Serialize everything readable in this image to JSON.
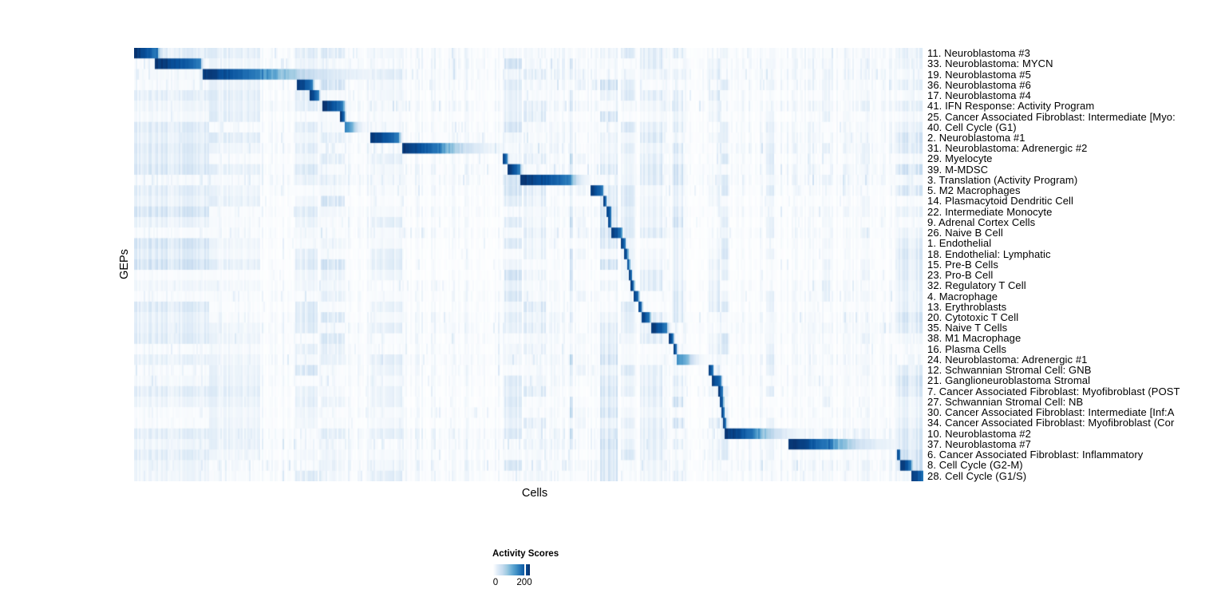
{
  "figure": {
    "y_axis_label": "GEPs",
    "x_axis_label": "Cells"
  },
  "legend": {
    "title": "Activity Scores",
    "tick_labels": [
      "0",
      "200"
    ],
    "min_value": 0,
    "max_tick_value": 200
  },
  "colors": {
    "background": "#ffffff",
    "heatmap_low": "#f7fbff",
    "heatmap_high": "#08306b"
  },
  "chart_data": {
    "type": "heatmap",
    "title": "",
    "xlabel": "Cells",
    "ylabel": "GEPs",
    "x_ticks": [],
    "grid": false,
    "legend_position": "bottom-left",
    "value_scale": {
      "min": 0,
      "tick": 200,
      "max": 220,
      "colormap": "Blues (white to dark navy)"
    },
    "colormap_stops": [
      "#ffffff",
      "#deebf7",
      "#c6dbef",
      "#9ecae1",
      "#6baed6",
      "#4292c6",
      "#2171b5",
      "#08519c",
      "#08306b"
    ],
    "n_rows": 41,
    "rows": [
      {
        "label": "11. Neuroblastoma #3",
        "start": 0.0,
        "dark": 0.029,
        "fade": 0.012,
        "peak": 215,
        "noise": 0.55
      },
      {
        "label": "33. Neuroblastoma: MYCN",
        "start": 0.026,
        "dark": 0.058,
        "fade": 0.006,
        "peak": 215,
        "noise": 0.65
      },
      {
        "label": "19. Neuroblastoma #5",
        "start": 0.087,
        "dark": 0.072,
        "fade": 0.17,
        "peak": 210,
        "noise": 0.7
      },
      {
        "label": "36. Neuroblastoma #6",
        "start": 0.206,
        "dark": 0.02,
        "fade": 0.004,
        "peak": 215,
        "noise": 0.6
      },
      {
        "label": "17. Neuroblastoma #4",
        "start": 0.222,
        "dark": 0.012,
        "fade": 0.003,
        "peak": 210,
        "noise": 0.45
      },
      {
        "label": "41. IFN Response: Activity Program",
        "start": 0.238,
        "dark": 0.027,
        "fade": 0.005,
        "peak": 215,
        "noise": 0.7
      },
      {
        "label": "25. Cancer Associated Fibroblast: Intermediate [Myo:",
        "start": 0.261,
        "dark": 0.006,
        "fade": 0.002,
        "peak": 215,
        "noise": 0.4
      },
      {
        "label": "40. Cell Cycle (G1)",
        "start": 0.267,
        "dark": 0.009,
        "fade": 0.02,
        "peak": 150,
        "noise": 0.55
      },
      {
        "label": "2. Neuroblastoma #1",
        "start": 0.298,
        "dark": 0.037,
        "fade": 0.006,
        "peak": 215,
        "noise": 0.6
      },
      {
        "label": "31. Neuroblastoma: Adrenergic #2",
        "start": 0.34,
        "dark": 0.045,
        "fade": 0.085,
        "peak": 215,
        "noise": 0.7
      },
      {
        "label": "29. Myelocyte",
        "start": 0.467,
        "dark": 0.006,
        "fade": 0.002,
        "peak": 200,
        "noise": 0.45
      },
      {
        "label": "39. M-MDSC",
        "start": 0.473,
        "dark": 0.015,
        "fade": 0.006,
        "peak": 215,
        "noise": 0.6
      },
      {
        "label": "3. Translation (Activity Program)",
        "start": 0.488,
        "dark": 0.063,
        "fade": 0.027,
        "peak": 215,
        "noise": 0.7
      },
      {
        "label": "5. M2 Macrophages",
        "start": 0.578,
        "dark": 0.015,
        "fade": 0.003,
        "peak": 215,
        "noise": 0.5
      },
      {
        "label": "14. Plasmacytoid Dendritic Cell",
        "start": 0.594,
        "dark": 0.004,
        "fade": 0.002,
        "peak": 210,
        "noise": 0.35
      },
      {
        "label": "22. Intermediate Monocyte",
        "start": 0.598,
        "dark": 0.006,
        "fade": 0.002,
        "peak": 210,
        "noise": 0.5
      },
      {
        "label": "9. Adrenal Cortex Cells",
        "start": 0.601,
        "dark": 0.003,
        "fade": 0.002,
        "peak": 195,
        "noise": 0.35
      },
      {
        "label": "26. Naive B Cell",
        "start": 0.604,
        "dark": 0.013,
        "fade": 0.003,
        "peak": 215,
        "noise": 0.5
      },
      {
        "label": "1. Endothelial",
        "start": 0.617,
        "dark": 0.005,
        "fade": 0.002,
        "peak": 210,
        "noise": 0.35
      },
      {
        "label": "18. Endothelial: Lymphatic",
        "start": 0.621,
        "dark": 0.004,
        "fade": 0.002,
        "peak": 205,
        "noise": 0.3
      },
      {
        "label": "15. Pre-B Cells",
        "start": 0.624,
        "dark": 0.003,
        "fade": 0.002,
        "peak": 205,
        "noise": 0.35
      },
      {
        "label": "23. Pro-B Cell",
        "start": 0.627,
        "dark": 0.003,
        "fade": 0.001,
        "peak": 205,
        "noise": 0.3
      },
      {
        "label": "32. Regulatory T Cell",
        "start": 0.629,
        "dark": 0.004,
        "fade": 0.002,
        "peak": 210,
        "noise": 0.45
      },
      {
        "label": "4. Macrophage",
        "start": 0.633,
        "dark": 0.006,
        "fade": 0.002,
        "peak": 210,
        "noise": 0.5
      },
      {
        "label": "13. Erythroblasts",
        "start": 0.639,
        "dark": 0.004,
        "fade": 0.002,
        "peak": 205,
        "noise": 0.35
      },
      {
        "label": "20. Cytotoxic T Cell",
        "start": 0.643,
        "dark": 0.01,
        "fade": 0.003,
        "peak": 210,
        "noise": 0.55
      },
      {
        "label": "35. Naive T Cells",
        "start": 0.654,
        "dark": 0.02,
        "fade": 0.006,
        "peak": 215,
        "noise": 0.65
      },
      {
        "label": "38. M1 Macrophage",
        "start": 0.676,
        "dark": 0.007,
        "fade": 0.002,
        "peak": 215,
        "noise": 0.5
      },
      {
        "label": "16. Plasma Cells",
        "start": 0.683,
        "dark": 0.004,
        "fade": 0.002,
        "peak": 205,
        "noise": 0.4
      },
      {
        "label": "24. Neuroblastoma: Adrenergic #1",
        "start": 0.686,
        "dark": 0.014,
        "fade": 0.026,
        "peak": 140,
        "noise": 0.6
      },
      {
        "label": "12. Schwannian Stromal Cell: GNB",
        "start": 0.727,
        "dark": 0.006,
        "fade": 0.002,
        "peak": 215,
        "noise": 0.5
      },
      {
        "label": "21. Ganglioneuroblastoma Stromal",
        "start": 0.731,
        "dark": 0.012,
        "fade": 0.003,
        "peak": 215,
        "noise": 0.5
      },
      {
        "label": "7. Cancer Associated Fibroblast: Myofibroblast (POST",
        "start": 0.74,
        "dark": 0.005,
        "fade": 0.002,
        "peak": 210,
        "noise": 0.35
      },
      {
        "label": "27. Schwannian Stromal Cell: NB",
        "start": 0.742,
        "dark": 0.004,
        "fade": 0.002,
        "peak": 210,
        "noise": 0.35
      },
      {
        "label": "30. Cancer Associated Fibroblast: Intermediate [Inf:A",
        "start": 0.744,
        "dark": 0.003,
        "fade": 0.002,
        "peak": 205,
        "noise": 0.45
      },
      {
        "label": "34. Cancer Associated Fibroblast: Myofibroblast (Cor",
        "start": 0.746,
        "dark": 0.003,
        "fade": 0.002,
        "peak": 205,
        "noise": 0.35
      },
      {
        "label": "10. Neuroblastoma #2",
        "start": 0.748,
        "dark": 0.037,
        "fade": 0.066,
        "peak": 215,
        "noise": 0.7
      },
      {
        "label": "37. Neuroblastoma #7",
        "start": 0.829,
        "dark": 0.05,
        "fade": 0.095,
        "peak": 215,
        "noise": 0.65
      },
      {
        "label": "6. Cancer Associated Fibroblast: Inflammatory",
        "start": 0.966,
        "dark": 0.004,
        "fade": 0.002,
        "peak": 205,
        "noise": 0.5
      },
      {
        "label": "8. Cell Cycle (G2-M)",
        "start": 0.97,
        "dark": 0.014,
        "fade": 0.004,
        "peak": 215,
        "noise": 0.7
      },
      {
        "label": "28. Cell Cycle (G1/S)",
        "start": 0.984,
        "dark": 0.015,
        "fade": 0.001,
        "peak": 215,
        "noise": 0.55
      }
    ],
    "column_bands": [
      {
        "x": 0.0,
        "w": 0.095,
        "score": 55
      },
      {
        "x": 0.095,
        "w": 0.065,
        "score": 35
      },
      {
        "x": 0.205,
        "w": 0.028,
        "score": 50
      },
      {
        "x": 0.236,
        "w": 0.03,
        "score": 55
      },
      {
        "x": 0.3,
        "w": 0.04,
        "score": 35
      },
      {
        "x": 0.468,
        "w": 0.022,
        "score": 70
      },
      {
        "x": 0.492,
        "w": 0.03,
        "score": 45
      },
      {
        "x": 0.551,
        "w": 0.005,
        "score": 95
      },
      {
        "x": 0.56,
        "w": 0.012,
        "score": 35
      },
      {
        "x": 0.59,
        "w": 0.022,
        "score": 60
      },
      {
        "x": 0.616,
        "w": 0.018,
        "score": 45
      },
      {
        "x": 0.641,
        "w": 0.028,
        "score": 45
      },
      {
        "x": 0.68,
        "w": 0.014,
        "score": 55
      },
      {
        "x": 0.728,
        "w": 0.014,
        "score": 45
      },
      {
        "x": 0.744,
        "w": 0.009,
        "score": 55
      },
      {
        "x": 0.8,
        "w": 0.01,
        "score": 35
      },
      {
        "x": 0.87,
        "w": 0.01,
        "score": 30
      },
      {
        "x": 0.92,
        "w": 0.012,
        "score": 35
      },
      {
        "x": 0.963,
        "w": 0.035,
        "score": 60
      }
    ]
  }
}
